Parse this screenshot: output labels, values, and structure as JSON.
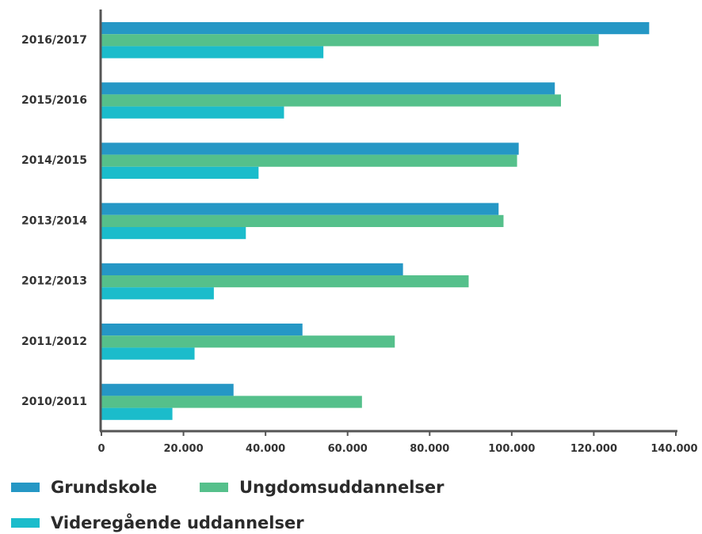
{
  "chart_data": {
    "type": "bar",
    "orientation": "horizontal",
    "categories": [
      "2016/2017",
      "2015/2016",
      "2014/2015",
      "2013/2014",
      "2012/2013",
      "2011/2012",
      "2010/2011"
    ],
    "series": [
      {
        "name": "Grundskole",
        "color": "#2597c5",
        "values": [
          133500,
          110500,
          101700,
          96800,
          73500,
          49000,
          32200
        ]
      },
      {
        "name": "Ungdomsuddannelser",
        "color": "#55c08b",
        "values": [
          121200,
          112000,
          101300,
          98000,
          89500,
          71500,
          63500
        ]
      },
      {
        "name": "Videregående uddannelser",
        "color": "#1bbccb",
        "values": [
          54100,
          44500,
          38300,
          35200,
          27400,
          22700,
          17300
        ]
      }
    ],
    "xlim": [
      0,
      140000
    ],
    "x_ticks": [
      0,
      20000,
      40000,
      60000,
      80000,
      100000,
      120000,
      140000
    ],
    "x_tick_labels": [
      "0",
      "20.000",
      "40.000",
      "60.000",
      "80.000",
      "100.000",
      "120.000",
      "140.000"
    ],
    "legend": {
      "placement": "bottom",
      "items": [
        "Grundskole",
        "Ungdomsuddannelser",
        "Videregående uddannelser"
      ]
    }
  }
}
